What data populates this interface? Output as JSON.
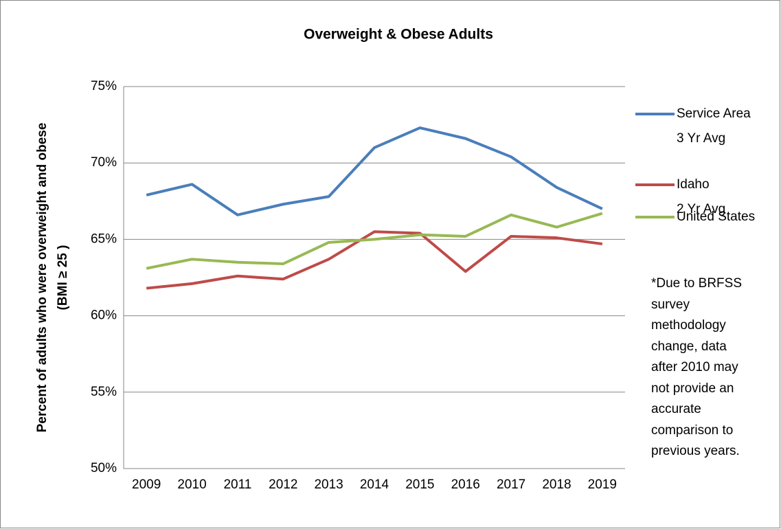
{
  "chart_data": {
    "type": "line",
    "title": "Overweight & Obese Adults",
    "y_label": [
      "Percent of adults who were overweight  and obese",
      "(BMI ≥ 25 )"
    ],
    "categories": [
      "2009",
      "2010",
      "2011",
      "2012",
      "2013",
      "2014",
      "2015",
      "2016",
      "2017",
      "2018",
      "2019"
    ],
    "series": [
      {
        "name": "Service Area\n3 Yr Avg",
        "color": "#4a7ebb",
        "values": [
          67.9,
          68.6,
          66.6,
          67.3,
          67.8,
          71.0,
          72.3,
          71.6,
          70.4,
          68.4,
          67.0
        ]
      },
      {
        "name": "Idaho\n2 Yr Avg",
        "color": "#be4b48",
        "values": [
          61.8,
          62.1,
          62.6,
          62.4,
          63.7,
          65.5,
          65.4,
          62.9,
          65.2,
          65.1,
          64.7
        ]
      },
      {
        "name": "United States",
        "color": "#98b954",
        "values": [
          63.1,
          63.7,
          63.5,
          63.4,
          64.8,
          65.0,
          65.3,
          65.2,
          66.6,
          65.8,
          66.7
        ]
      }
    ],
    "ylim": [
      50,
      75
    ],
    "yticks": [
      {
        "value": 50,
        "label": "50%"
      },
      {
        "value": 55,
        "label": "55%"
      },
      {
        "value": 60,
        "label": "60%"
      },
      {
        "value": 65,
        "label": "65%"
      },
      {
        "value": 70,
        "label": "70%"
      },
      {
        "value": 75,
        "label": "75%"
      }
    ],
    "grid": true,
    "legend": "right",
    "annotation": "*Due to BRFSS\nsurvey\nmethodology\nchange, data\nafter 2010 may\nnot provide an\naccurate\ncomparison to\nprevious years."
  }
}
